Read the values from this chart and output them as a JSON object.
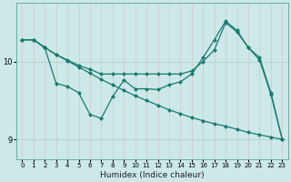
{
  "xlabel": "Humidex (Indice chaleur)",
  "bg_color": "#cce8e8",
  "line_color": "#1a7a6e",
  "grid_color_v": "#c0dada",
  "grid_color_h": "#b8d0d0",
  "xlim": [
    -0.5,
    23.5
  ],
  "ylim": [
    8.75,
    10.75
  ],
  "yticks": [
    9,
    10
  ],
  "xticks": [
    0,
    1,
    2,
    3,
    4,
    5,
    6,
    7,
    8,
    9,
    10,
    11,
    12,
    13,
    14,
    15,
    16,
    17,
    18,
    19,
    20,
    21,
    22,
    23
  ],
  "line1_x": [
    0,
    1,
    2,
    3,
    4,
    5,
    6,
    7,
    8,
    9,
    10,
    11,
    12,
    13,
    14,
    15,
    16,
    17,
    18,
    19,
    20,
    21,
    22,
    23
  ],
  "line1_y": [
    10.28,
    10.28,
    10.18,
    10.09,
    10.01,
    9.93,
    9.85,
    9.77,
    9.7,
    9.63,
    9.56,
    9.5,
    9.44,
    9.38,
    9.33,
    9.28,
    9.24,
    9.2,
    9.17,
    9.13,
    9.09,
    9.06,
    9.03,
    9.0
  ],
  "line2_x": [
    0,
    1,
    2,
    3,
    4,
    5,
    6,
    7,
    8,
    9,
    10,
    11,
    12,
    13,
    14,
    15,
    16,
    17,
    18,
    19,
    20,
    21,
    22,
    23
  ],
  "line2_y": [
    10.28,
    10.28,
    10.18,
    9.72,
    9.68,
    9.6,
    9.32,
    9.27,
    9.55,
    9.76,
    9.65,
    9.65,
    9.64,
    9.7,
    9.74,
    9.84,
    10.05,
    10.28,
    10.52,
    10.4,
    10.18,
    10.05,
    9.6,
    9.0
  ],
  "line3_x": [
    0,
    1,
    2,
    3,
    4,
    5,
    6,
    7,
    8,
    9,
    10,
    11,
    12,
    13,
    14,
    15,
    16,
    17,
    18,
    19,
    20,
    21,
    22,
    23
  ],
  "line3_y": [
    10.28,
    10.28,
    10.18,
    10.09,
    10.02,
    9.95,
    9.9,
    9.84,
    9.84,
    9.84,
    9.84,
    9.84,
    9.84,
    9.84,
    9.84,
    9.88,
    10.0,
    10.15,
    10.5,
    10.38,
    10.18,
    10.02,
    9.58,
    9.0
  ]
}
